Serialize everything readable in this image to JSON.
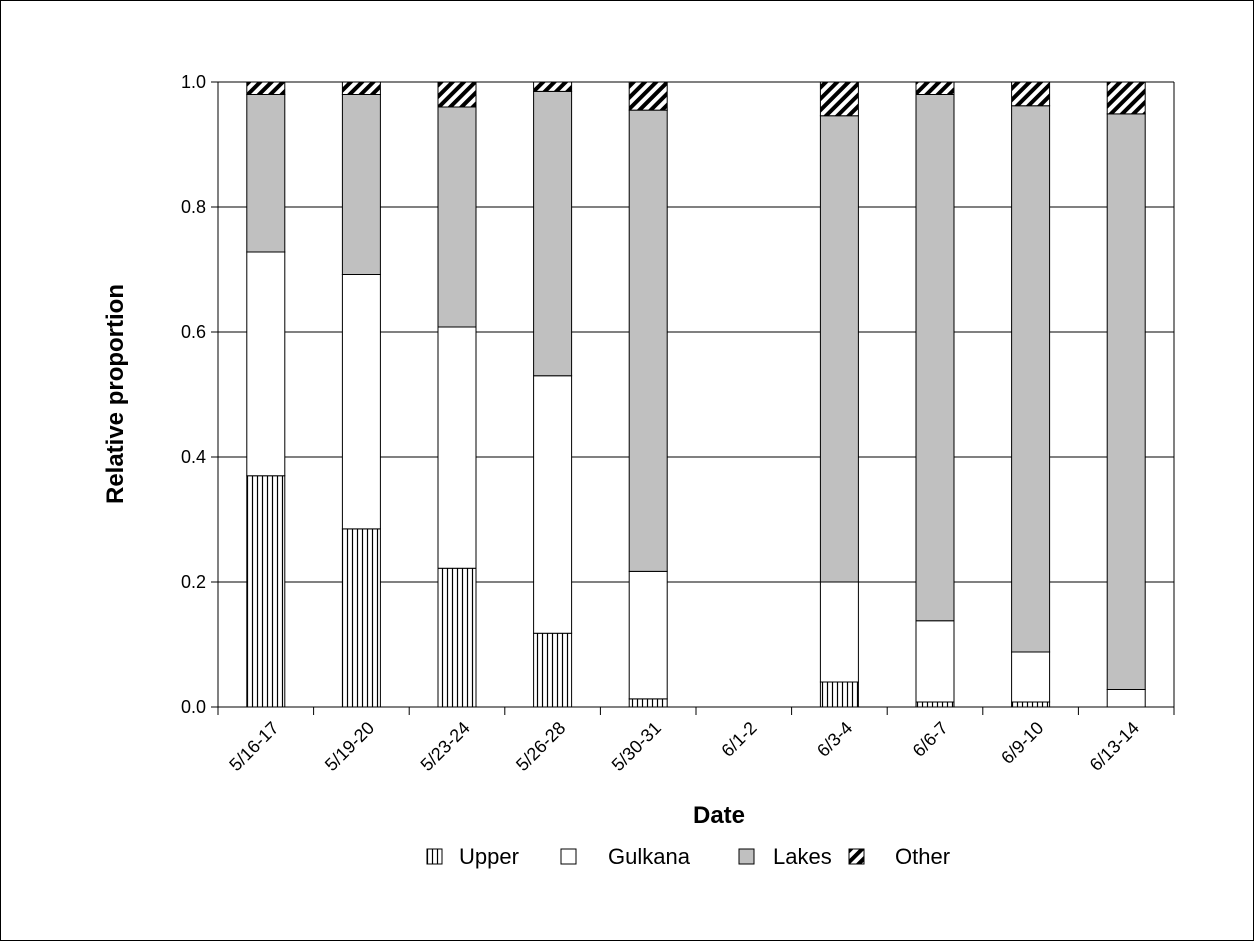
{
  "chart_data": {
    "type": "bar",
    "stacked": true,
    "title": "",
    "xlabel": "Date",
    "ylabel": "Relative proportion",
    "ylim": [
      0,
      1
    ],
    "yticks": [
      "0.0",
      "0.2",
      "0.4",
      "0.6",
      "0.8",
      "1.0"
    ],
    "grid": true,
    "legend_position": "bottom",
    "categories": [
      "5/16-17",
      "5/19-20",
      "5/23-24",
      "5/26-28",
      "5/30-31",
      "6/1-2",
      "6/3-4",
      "6/6-7",
      "6/9-10",
      "6/13-14"
    ],
    "series": [
      {
        "name": "Upper",
        "pattern": "vertical-lines",
        "values": [
          0.37,
          0.285,
          0.222,
          0.118,
          0.013,
          0,
          0.04,
          0.008,
          0.008,
          0.0
        ]
      },
      {
        "name": "Gulkana",
        "pattern": "white",
        "values": [
          0.358,
          0.407,
          0.386,
          0.412,
          0.204,
          0,
          0.16,
          0.13,
          0.08,
          0.028
        ]
      },
      {
        "name": "Lakes",
        "pattern": "gray",
        "color": "#c0c0c0",
        "values": [
          0.252,
          0.288,
          0.352,
          0.455,
          0.738,
          0,
          0.746,
          0.842,
          0.874,
          0.921
        ]
      },
      {
        "name": "Other",
        "pattern": "diagonal-hatch",
        "values": [
          0.02,
          0.02,
          0.04,
          0.015,
          0.045,
          0,
          0.054,
          0.02,
          0.038,
          0.051
        ]
      }
    ]
  }
}
